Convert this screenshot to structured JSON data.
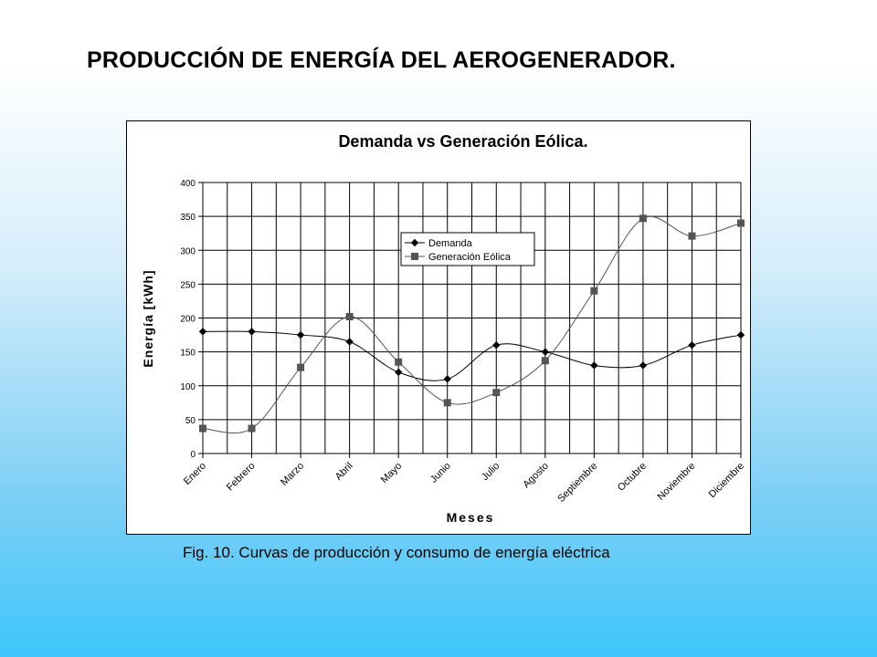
{
  "slide": {
    "title": "PRODUCCIÓN DE ENERGÍA DEL AEROGENERADOR.",
    "caption": "Fig. 10. Curvas de producción y consumo de energía eléctrica"
  },
  "chart_data": {
    "type": "line",
    "title": "Demanda vs Generación Eólica.",
    "xlabel": "Meses",
    "ylabel": "Energía [kWh]",
    "categories": [
      "Enero",
      "Febrero",
      "Marzo",
      "Abril",
      "Mayo",
      "Junio",
      "Julio",
      "Agosto",
      "Septiembre",
      "Octubre",
      "Noviembre",
      "Diciembre"
    ],
    "ylim": [
      0,
      400
    ],
    "yticks": [
      0,
      50,
      100,
      150,
      200,
      250,
      300,
      350,
      400
    ],
    "grid": true,
    "legend_position": "upper-center",
    "smooth": true,
    "series": [
      {
        "name": "Demanda",
        "marker": "diamond",
        "color": "#000000",
        "values": [
          180,
          180,
          175,
          165,
          120,
          110,
          160,
          150,
          130,
          130,
          160,
          175
        ]
      },
      {
        "name": "Generación Eólica",
        "marker": "square",
        "color": "#555555",
        "values": [
          37,
          37,
          127,
          202,
          135,
          75,
          90,
          137,
          240,
          347,
          321,
          340
        ]
      }
    ]
  }
}
